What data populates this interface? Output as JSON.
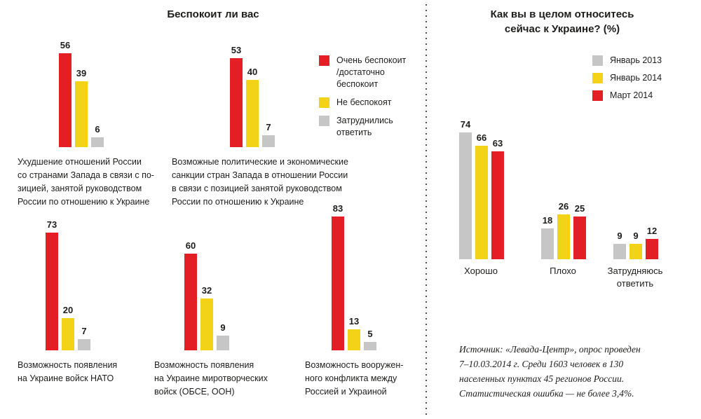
{
  "left_panel": {
    "title": "Беспокоит ли вас"
  },
  "right_panel": {
    "title": "Как вы в целом относитесь\nсейчас к Украине? (%)",
    "source_label": "Источник:",
    "source_text": " «Левада-Центр», опрос проведен\n7–10.03.2014 г. Среди 1603 человек в 130\nнаселенных пунктах 45 регионов России.\nСтатистическая ошибка — не более 3,4%."
  },
  "colors": {
    "red": "#e31e24",
    "yellow": "#f2d318",
    "gray": "#c6c6c6",
    "text": "#1d1d1b"
  },
  "chart_data": [
    {
      "type": "bar",
      "title": "Беспокоит ли вас",
      "unit": "%",
      "ylim": [
        0,
        100
      ],
      "legend_position": "top-right",
      "categories": [
        "Ухудшение отношений России\nсо странами Запада в связи с по-\nзицией, занятой руководством\nРоссии по отношению к Украине",
        "Возможные политические и экономические\nсанкции стран Запада в отношении России\nв связи с позицией занятой руководством\nРоссии по отношению к Украине",
        "Возможность появления\nна Украине войск НАТО",
        "Возможность появления\nна Украине миротворческих\nвойск (ОБСЕ, ООН)",
        "Возможность вооружен-\nного конфликта между\nРоссией и Украиной"
      ],
      "series": [
        {
          "name": "Очень беспокоит\n/достаточно\nбеспокоит",
          "color": "#e31e24",
          "values": [
            56,
            53,
            73,
            60,
            83
          ]
        },
        {
          "name": "Не беспокоят",
          "color": "#f2d318",
          "values": [
            39,
            40,
            20,
            32,
            13
          ]
        },
        {
          "name": "Затруднились\nответить",
          "color": "#c6c6c6",
          "values": [
            6,
            7,
            7,
            9,
            5
          ]
        }
      ]
    },
    {
      "type": "bar",
      "title": "Как вы в целом относитесь сейчас к Украине? (%)",
      "unit": "%",
      "ylim": [
        0,
        100
      ],
      "legend_position": "top-right",
      "categories": [
        "Хорошо",
        "Плохо",
        "Затрудняюсь\nответить"
      ],
      "series": [
        {
          "name": "Январь 2013",
          "color": "#c6c6c6",
          "values": [
            74,
            18,
            9
          ]
        },
        {
          "name": "Январь 2014",
          "color": "#f2d318",
          "values": [
            66,
            26,
            9
          ]
        },
        {
          "name": "Март 2014",
          "color": "#e31e24",
          "values": [
            63,
            25,
            12
          ]
        }
      ]
    }
  ]
}
